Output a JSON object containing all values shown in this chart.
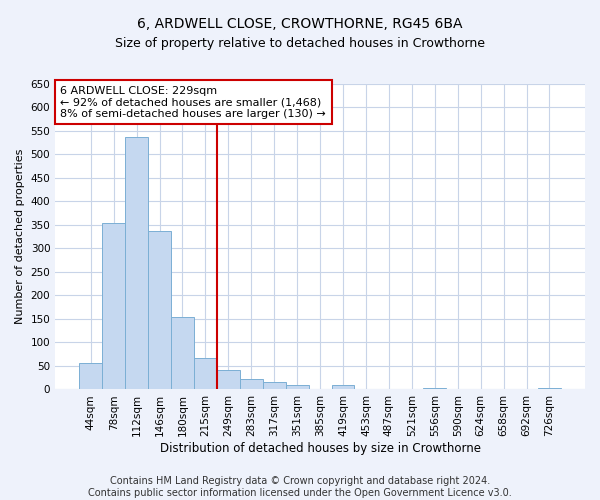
{
  "title": "6, ARDWELL CLOSE, CROWTHORNE, RG45 6BA",
  "subtitle": "Size of property relative to detached houses in Crowthorne",
  "xlabel": "Distribution of detached houses by size in Crowthorne",
  "ylabel": "Number of detached properties",
  "categories": [
    "44sqm",
    "78sqm",
    "112sqm",
    "146sqm",
    "180sqm",
    "215sqm",
    "249sqm",
    "283sqm",
    "317sqm",
    "351sqm",
    "385sqm",
    "419sqm",
    "453sqm",
    "487sqm",
    "521sqm",
    "556sqm",
    "590sqm",
    "624sqm",
    "658sqm",
    "692sqm",
    "726sqm"
  ],
  "values": [
    57,
    354,
    538,
    338,
    155,
    67,
    42,
    22,
    16,
    10,
    0,
    9,
    0,
    0,
    0,
    3,
    0,
    0,
    0,
    0,
    3
  ],
  "bar_color": "#c5d8f0",
  "bar_edge_color": "#7bafd4",
  "vline_x": 5.5,
  "vline_color": "#cc0000",
  "annotation_line1": "6 ARDWELL CLOSE: 229sqm",
  "annotation_line2": "← 92% of detached houses are smaller (1,468)",
  "annotation_line3": "8% of semi-detached houses are larger (130) →",
  "annotation_box_color": "#ffffff",
  "annotation_box_edge": "#cc0000",
  "ylim": [
    0,
    650
  ],
  "yticks": [
    0,
    50,
    100,
    150,
    200,
    250,
    300,
    350,
    400,
    450,
    500,
    550,
    600,
    650
  ],
  "footer_text": "Contains HM Land Registry data © Crown copyright and database right 2024.\nContains public sector information licensed under the Open Government Licence v3.0.",
  "bg_color": "#eef2fb",
  "plot_bg_color": "#ffffff",
  "grid_color": "#c8d4e8",
  "title_fontsize": 10,
  "subtitle_fontsize": 9,
  "xlabel_fontsize": 8.5,
  "ylabel_fontsize": 8,
  "tick_fontsize": 7.5,
  "annotation_fontsize": 8,
  "footer_fontsize": 7
}
